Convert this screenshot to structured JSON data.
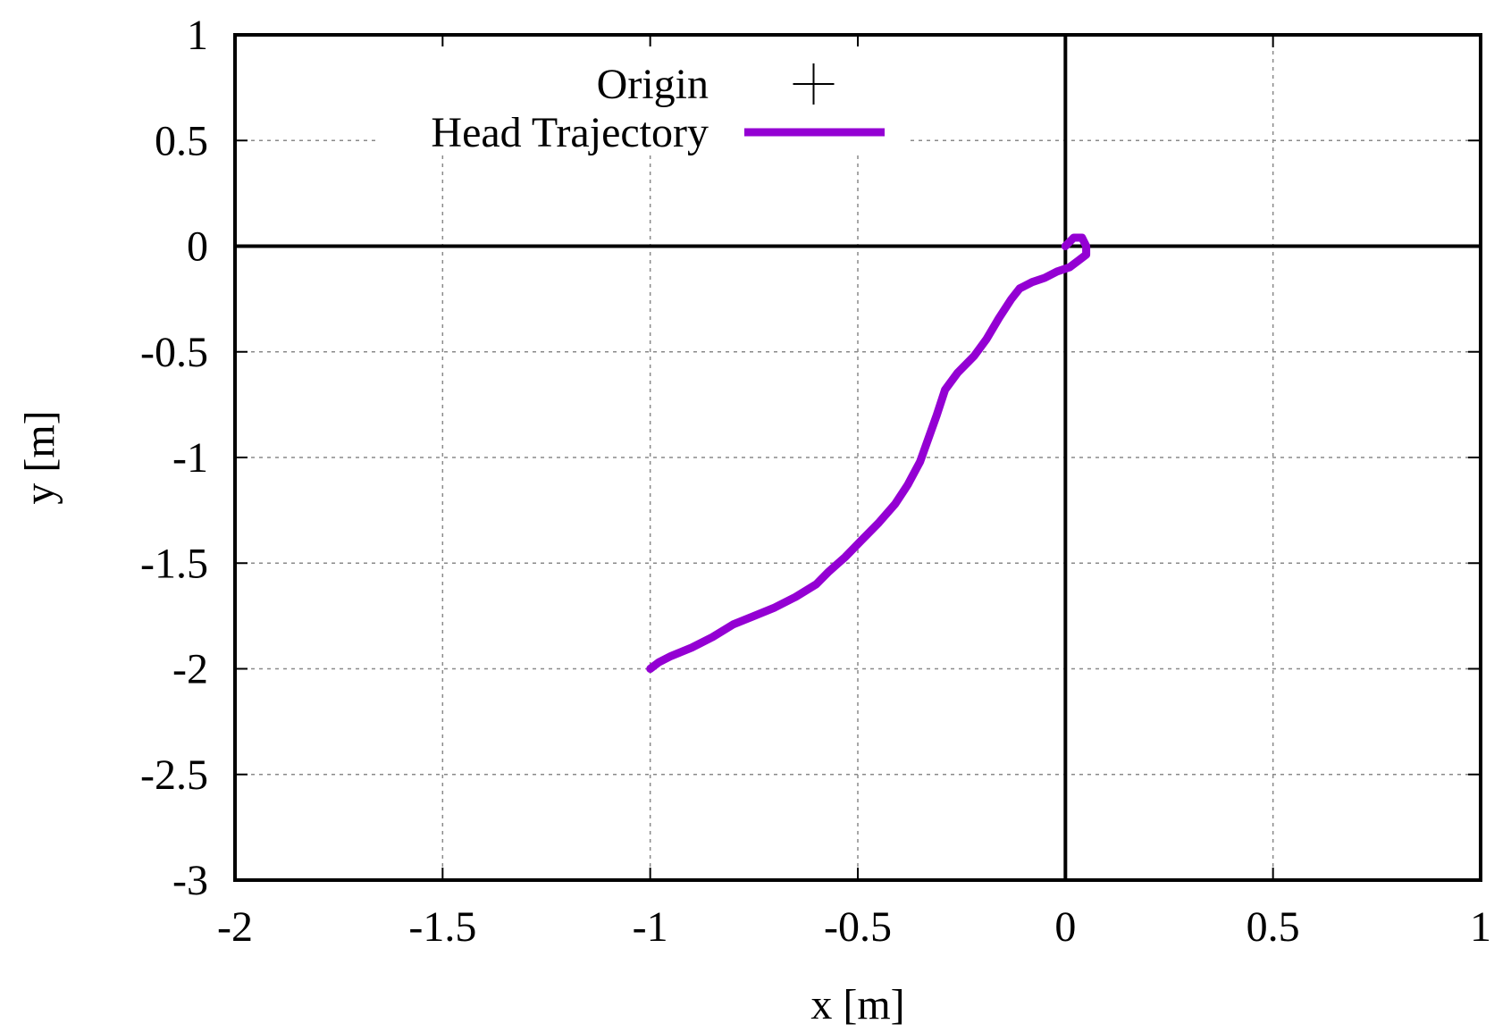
{
  "chart_data": {
    "type": "line",
    "title": "",
    "xlabel": "x [m]",
    "ylabel": "y [m]",
    "xlim": [
      -2,
      1
    ],
    "ylim": [
      -3,
      1
    ],
    "x_ticks": [
      -2,
      -1.5,
      -1,
      -0.5,
      0,
      0.5,
      1
    ],
    "x_tick_labels": [
      "-2",
      "-1.5",
      "-1",
      "-0.5",
      "0",
      "0.5",
      "1"
    ],
    "y_ticks": [
      -3,
      -2.5,
      -2,
      -1.5,
      -1,
      -0.5,
      0,
      0.5,
      1
    ],
    "y_tick_labels": [
      "-3",
      "-2.5",
      "-2",
      "-1.5",
      "-1",
      "-0.5",
      "0",
      "0.5",
      "1"
    ],
    "grid": true,
    "zero_axes": true,
    "legend_position": "top-center",
    "series": [
      {
        "name": "Origin",
        "kind": "point",
        "marker": "plus",
        "color": "#000000",
        "x": [],
        "y": []
      },
      {
        "name": "Head Trajectory",
        "kind": "line",
        "color": "#9400d3",
        "x": [
          -1.0,
          -0.98,
          -0.95,
          -0.9,
          -0.85,
          -0.8,
          -0.75,
          -0.7,
          -0.65,
          -0.6,
          -0.57,
          -0.53,
          -0.49,
          -0.45,
          -0.41,
          -0.38,
          -0.35,
          -0.33,
          -0.31,
          -0.29,
          -0.26,
          -0.22,
          -0.19,
          -0.16,
          -0.13,
          -0.11,
          -0.08,
          -0.05,
          -0.02,
          0.01,
          0.03,
          0.05,
          0.05,
          0.04,
          0.02,
          0.0
        ],
        "y": [
          -2.0,
          -1.97,
          -1.94,
          -1.9,
          -1.85,
          -1.79,
          -1.75,
          -1.71,
          -1.66,
          -1.6,
          -1.54,
          -1.47,
          -1.39,
          -1.31,
          -1.22,
          -1.13,
          -1.02,
          -0.91,
          -0.8,
          -0.68,
          -0.6,
          -0.52,
          -0.44,
          -0.34,
          -0.25,
          -0.2,
          -0.17,
          -0.15,
          -0.12,
          -0.1,
          -0.07,
          -0.04,
          0.0,
          0.04,
          0.04,
          0.0
        ]
      }
    ]
  }
}
